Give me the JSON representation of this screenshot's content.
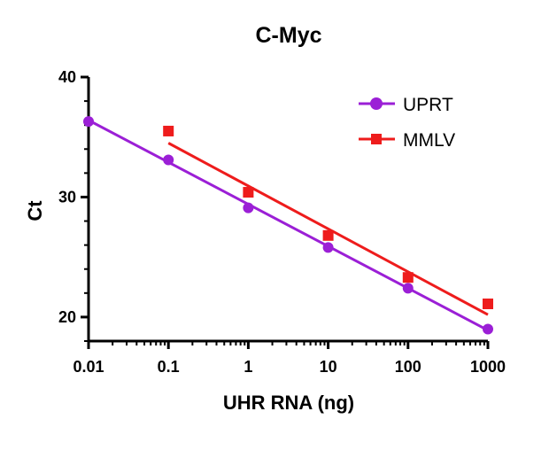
{
  "chart_data": {
    "type": "scatter",
    "title": "C-Myc",
    "xlabel": "UHR RNA (ng)",
    "ylabel": "Ct",
    "xscale": "log",
    "xlim": [
      0.01,
      1000
    ],
    "ylim": [
      18,
      40
    ],
    "xticks": [
      0.01,
      0.1,
      1,
      10,
      100,
      1000
    ],
    "xtick_labels": [
      "0.01",
      "0.1",
      "1",
      "10",
      "100",
      "1000"
    ],
    "yticks": [
      20,
      30,
      40
    ],
    "ytick_labels": [
      "20",
      "30",
      "40"
    ],
    "legend_position": "top-right",
    "grid": false,
    "series": [
      {
        "name": "UPRT",
        "color": "#9b1fd6",
        "marker": "circle",
        "x": [
          0.01,
          0.1,
          1,
          10,
          100,
          1000
        ],
        "y": [
          36.3,
          33.1,
          29.1,
          25.8,
          22.4,
          19.0
        ],
        "fit": {
          "x": [
            0.01,
            1000
          ],
          "y": [
            36.4,
            18.9
          ]
        }
      },
      {
        "name": "MMLV",
        "color": "#ee1c1c",
        "marker": "square",
        "x": [
          0.1,
          1,
          10,
          100,
          1000
        ],
        "y": [
          35.5,
          30.4,
          26.8,
          23.3,
          21.1
        ],
        "fit": {
          "x": [
            0.1,
            1000
          ],
          "y": [
            34.5,
            20.2
          ]
        }
      }
    ]
  }
}
